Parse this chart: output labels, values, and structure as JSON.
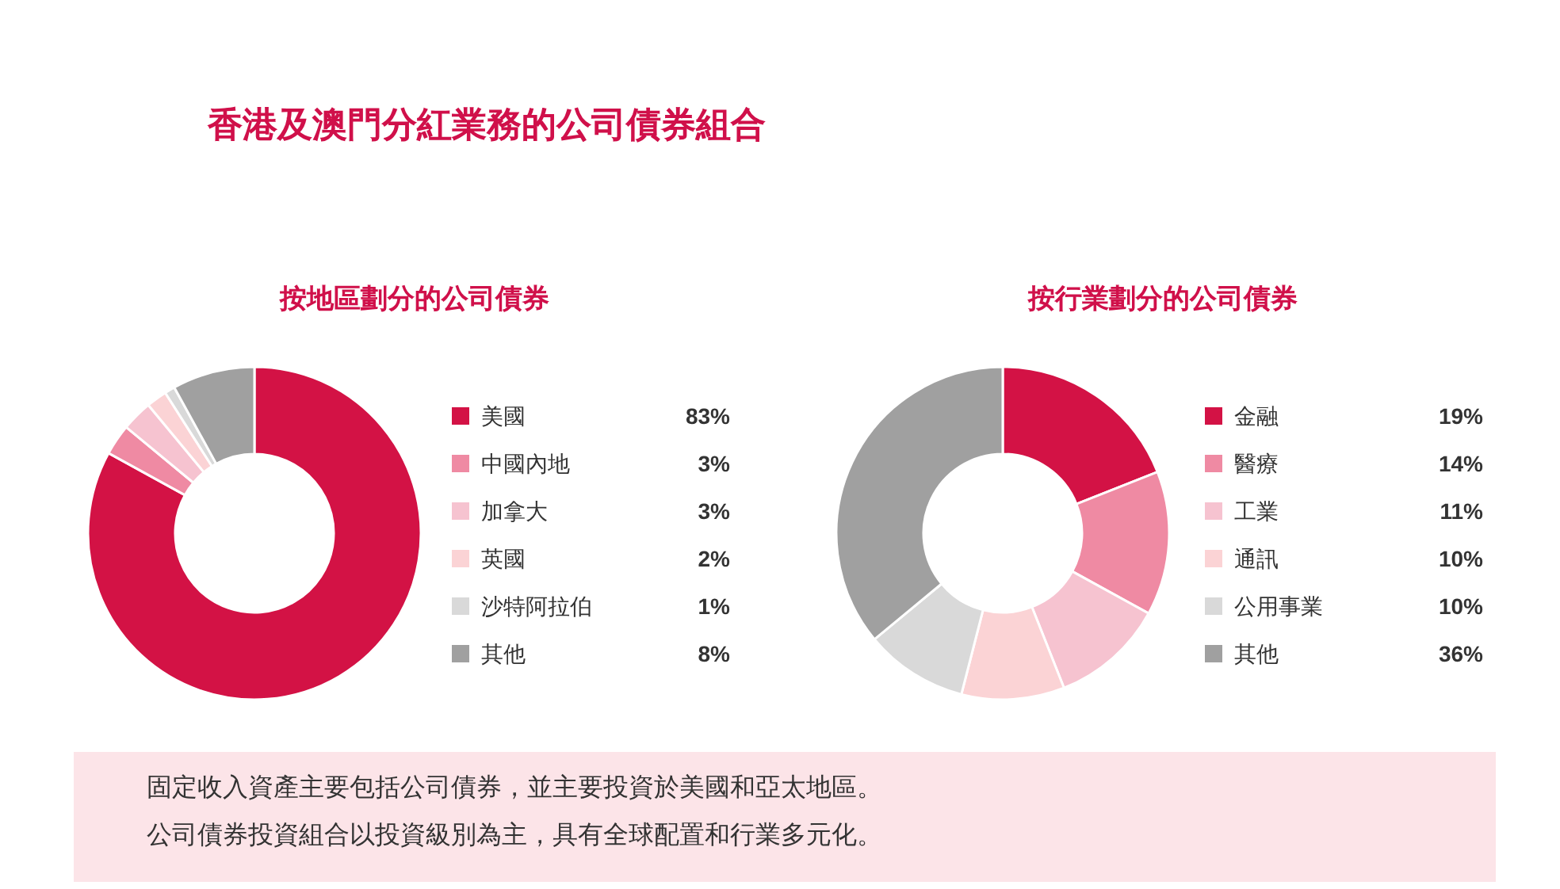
{
  "chart_data": [
    {
      "type": "other",
      "title": "香港及澳門分紅業務的公司債券組合"
    },
    {
      "type": "donut",
      "title": "按地區劃分的公司債券",
      "categories": [
        "美國",
        "中國內地",
        "加拿大",
        "英國",
        "沙特阿拉伯",
        "其他"
      ],
      "values": [
        83,
        3,
        3,
        2,
        1,
        8
      ],
      "value_labels": [
        "83%",
        "3%",
        "3%",
        "2%",
        "1%",
        "8%"
      ],
      "colors": [
        "#d31245",
        "#ef8aa3",
        "#f6c3d0",
        "#fbd3d5",
        "#d9d9d9",
        "#a0a0a0"
      ],
      "legend": "right"
    },
    {
      "type": "donut",
      "title": "按行業劃分的公司債券",
      "categories": [
        "金融",
        "醫療",
        "工業",
        "通訊",
        "公用事業",
        "其他"
      ],
      "values": [
        19,
        14,
        11,
        10,
        10,
        36
      ],
      "value_labels": [
        "19%",
        "14%",
        "11%",
        "10%",
        "10%",
        "36%"
      ],
      "colors": [
        "#d31245",
        "#ef8aa3",
        "#f6c3d0",
        "#fbd3d5",
        "#d9d9d9",
        "#a0a0a0"
      ],
      "legend": "right"
    },
    {
      "type": "other",
      "annotations": [
        "固定收入資產主要包括公司債券，並主要投資於美國和亞太地區。",
        "公司債券投資組合以投資級別為主，具有全球配置和行業多元化。"
      ]
    }
  ]
}
